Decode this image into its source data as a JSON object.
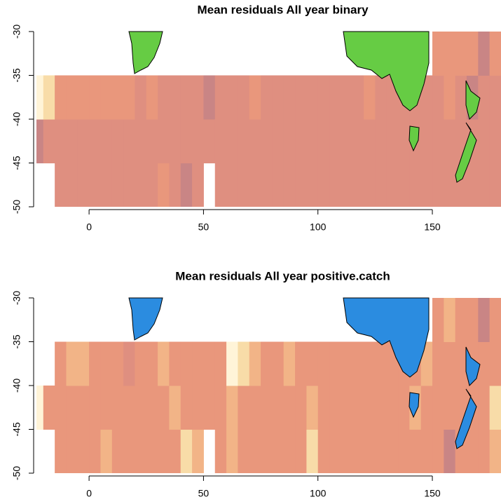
{
  "chart_data": [
    {
      "type": "heatmap",
      "title": "Mean residuals All year binary",
      "x_bins": [
        -25,
        -20,
        -15,
        -10,
        -5,
        0,
        5,
        10,
        15,
        20,
        25,
        30,
        35,
        40,
        45,
        50,
        55,
        60,
        65,
        70,
        75,
        80,
        85,
        90,
        95,
        100,
        105,
        110,
        115,
        120,
        125,
        130,
        135,
        140,
        145,
        150,
        155,
        160,
        165,
        170,
        175,
        180
      ],
      "y_bins": [
        -50,
        -45,
        -40,
        -35,
        -30
      ],
      "values": [
        [
          null,
          null,
          -0.1,
          -0.1,
          -0.1,
          -0.1,
          -0.1,
          -0.1,
          -0.1,
          -0.1,
          -0.1,
          0.05,
          -0.1,
          -0.3,
          -0.1,
          null,
          -0.1,
          -0.1,
          -0.1,
          -0.1,
          -0.1,
          -0.1,
          -0.1,
          -0.1,
          -0.1,
          -0.1,
          -0.1,
          -0.1,
          -0.1,
          -0.1,
          -0.1,
          -0.1,
          -0.1,
          -0.1,
          -0.1,
          -0.1,
          -0.1,
          -0.1,
          -0.1,
          -0.1,
          -0.1
        ],
        [
          -0.3,
          -0.1,
          -0.1,
          -0.1,
          -0.1,
          -0.1,
          -0.1,
          -0.1,
          -0.1,
          -0.1,
          -0.1,
          -0.1,
          -0.1,
          -0.1,
          -0.1,
          -0.1,
          -0.1,
          -0.1,
          -0.1,
          -0.1,
          -0.1,
          -0.1,
          -0.1,
          -0.1,
          -0.1,
          -0.1,
          -0.1,
          -0.1,
          -0.1,
          -0.1,
          -0.1,
          -0.1,
          -0.1,
          -0.1,
          -0.1,
          -0.1,
          -0.1,
          -0.1,
          -0.1,
          -0.1,
          -0.1
        ],
        [
          0.55,
          0.4,
          0.05,
          0.05,
          0.05,
          0.05,
          0.05,
          0.05,
          0.05,
          -0.1,
          0.05,
          -0.1,
          -0.1,
          -0.1,
          -0.1,
          -0.3,
          -0.1,
          -0.1,
          -0.1,
          0.05,
          -0.1,
          -0.1,
          -0.1,
          -0.1,
          -0.1,
          -0.1,
          -0.1,
          -0.1,
          -0.1,
          0.05,
          -0.1,
          -0.1,
          -0.1,
          -0.1,
          -0.1,
          -0.1,
          0.05,
          -0.1,
          -0.3,
          -0.1,
          -0.1
        ],
        [
          null,
          null,
          null,
          null,
          null,
          null,
          null,
          null,
          null,
          null,
          null,
          null,
          null,
          null,
          null,
          null,
          null,
          null,
          null,
          null,
          null,
          null,
          null,
          null,
          null,
          null,
          null,
          null,
          null,
          null,
          null,
          null,
          null,
          null,
          null,
          0.05,
          0.05,
          0.05,
          0.05,
          -0.3,
          0.05
        ]
      ],
      "zlim": [
        -0.6,
        0.6
      ],
      "colors": [
        "#a86f8c",
        "#c98585",
        "#df8f80",
        "#e9977c",
        "#f2b487",
        "#f8dca8",
        "#fff4d8"
      ],
      "xlim": [
        -23,
        180
      ],
      "ylim": [
        -50,
        -30
      ],
      "xticks": [
        0,
        50,
        100,
        150
      ],
      "yticks": [
        -30,
        -35,
        -40,
        -45,
        -50
      ]
    },
    {
      "type": "heatmap",
      "title": "Mean residuals All year positive.catch",
      "x_bins": [
        -25,
        -20,
        -15,
        -10,
        -5,
        0,
        5,
        10,
        15,
        20,
        25,
        30,
        35,
        40,
        45,
        50,
        55,
        60,
        65,
        70,
        75,
        80,
        85,
        90,
        95,
        100,
        105,
        110,
        115,
        120,
        125,
        130,
        135,
        140,
        145,
        150,
        155,
        160,
        165,
        170,
        175,
        180
      ],
      "y_bins": [
        -50,
        -45,
        -40,
        -35,
        -30
      ],
      "values": [
        [
          null,
          null,
          0.05,
          0.05,
          0.05,
          0.05,
          0.25,
          0.05,
          0.05,
          0.05,
          0.05,
          0.05,
          0.05,
          0.4,
          0.25,
          null,
          0.05,
          0.25,
          0.05,
          0.05,
          0.05,
          0.05,
          0.05,
          0.05,
          0.4,
          0.05,
          0.05,
          0.05,
          0.05,
          0.05,
          0.05,
          0.05,
          0.05,
          0.05,
          0.05,
          0.05,
          -0.3,
          0.05,
          0.05,
          0.05,
          0.25
        ],
        [
          0.55,
          0.05,
          0.05,
          0.05,
          0.05,
          0.05,
          0.05,
          0.05,
          0.05,
          0.05,
          0.05,
          0.05,
          0.25,
          0.05,
          0.05,
          0.05,
          0.05,
          0.25,
          0.05,
          0.05,
          0.05,
          0.05,
          0.05,
          0.05,
          0.25,
          0.05,
          0.05,
          0.05,
          0.05,
          0.05,
          0.05,
          0.05,
          0.05,
          0.25,
          0.05,
          0.05,
          0.05,
          0.05,
          0.05,
          0.05,
          0.4
        ],
        [
          null,
          null,
          0.05,
          0.25,
          0.25,
          0.05,
          0.05,
          0.05,
          -0.1,
          0.05,
          0.05,
          0.25,
          0.05,
          0.05,
          0.05,
          0.05,
          0.05,
          0.55,
          0.4,
          0.25,
          0.05,
          0.05,
          0.25,
          0.05,
          0.05,
          0.05,
          0.05,
          0.05,
          0.05,
          0.05,
          0.05,
          0.05,
          0.05,
          0.05,
          0.25,
          0.05,
          0.05,
          0.05,
          0.05,
          0.05,
          0.05
        ],
        [
          null,
          null,
          null,
          null,
          null,
          null,
          null,
          null,
          null,
          null,
          null,
          null,
          null,
          null,
          null,
          null,
          null,
          null,
          null,
          null,
          null,
          null,
          null,
          null,
          null,
          null,
          null,
          null,
          null,
          null,
          null,
          null,
          null,
          null,
          null,
          0.05,
          0.25,
          0.05,
          0.05,
          -0.3,
          0.05
        ]
      ],
      "zlim": [
        -0.6,
        0.6
      ],
      "colors": [
        "#a86f8c",
        "#c98585",
        "#df8f80",
        "#e9977c",
        "#f2b487",
        "#f8dca8",
        "#fff4d8"
      ],
      "xlim": [
        -23,
        180
      ],
      "ylim": [
        -50,
        -30
      ],
      "xticks": [
        0,
        50,
        100,
        150
      ],
      "yticks": [
        -30,
        -35,
        -40,
        -45,
        -50
      ]
    }
  ]
}
